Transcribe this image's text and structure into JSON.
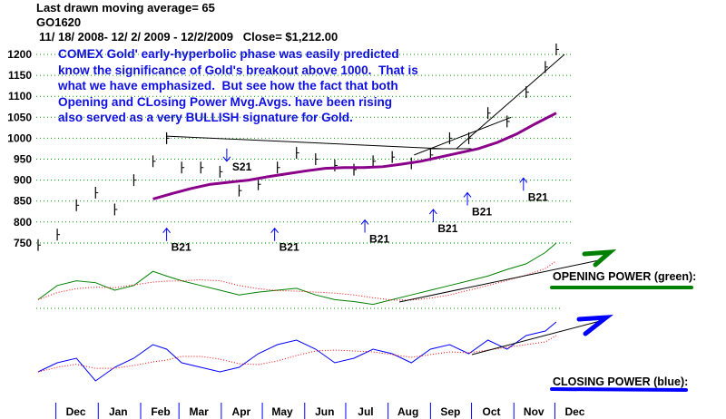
{
  "header": {
    "ma_line": "Last drawn moving average= 65",
    "symbol": "GO1620",
    "range_line": "11/ 18/ 2008- 12/ 2/ 2009 - 12/2/2009   Close= $1,212.00"
  },
  "annotation": {
    "lines": [
      "COMEX Gold' early-hyperbolic phase was easily predicted",
      "know the significance of Gold's breakout above 1000.  That is",
      "what we have emphasized.  But see how the fact that both",
      "Opening and CLosing Power Mvg.Avgs. have been rising",
      "also served as a very BULLISH signature for Gold."
    ]
  },
  "panels": {
    "opening_power_label": "OPENING POWER (green):",
    "closing_power_label": "CLOSING POWER (blue):"
  },
  "colors": {
    "price": "#000000",
    "moving_average": "#8b008b",
    "opening_power": "#008000",
    "closing_power": "#0000ff",
    "indicator_ma": "#ff0000",
    "grid": "#00a000",
    "signal": "#0000ff",
    "annotation_text": "#1010e0"
  },
  "chart_data": {
    "type": "bar",
    "subtype": "ohlc-price-with-indicators",
    "yticks": [
      750,
      800,
      850,
      900,
      950,
      1000,
      1050,
      1100,
      1150,
      1200
    ],
    "ylim": [
      740,
      1220
    ],
    "grid": true,
    "months": [
      "Dec",
      "Jan",
      "Feb",
      "Mar",
      "Apr",
      "May",
      "Jun",
      "Jul",
      "Aug",
      "Sep",
      "Oct",
      "Nov",
      "Dec"
    ],
    "month_starts": [
      "2008-12-01",
      "2009-01-01",
      "2009-02-01",
      "2009-03-01",
      "2009-04-01",
      "2009-05-01",
      "2009-06-01",
      "2009-07-01",
      "2009-08-01",
      "2009-09-01",
      "2009-10-01",
      "2009-11-01",
      "2009-12-01"
    ],
    "xlim": [
      "2008-11-18",
      "2009-12-08"
    ],
    "price": {
      "dates": [
        "2008-11-18",
        "2008-12-02",
        "2008-12-16",
        "2008-12-30",
        "2009-01-13",
        "2009-01-27",
        "2009-02-10",
        "2009-02-20",
        "2009-03-03",
        "2009-03-17",
        "2009-03-31",
        "2009-04-14",
        "2009-04-28",
        "2009-05-12",
        "2009-05-26",
        "2009-06-09",
        "2009-06-23",
        "2009-07-07",
        "2009-07-21",
        "2009-08-04",
        "2009-08-18",
        "2009-09-01",
        "2009-09-15",
        "2009-09-29",
        "2009-10-13",
        "2009-10-27",
        "2009-11-10",
        "2009-11-24",
        "2009-12-02"
      ],
      "close": [
        745,
        770,
        840,
        870,
        830,
        900,
        945,
        1000,
        930,
        930,
        920,
        875,
        890,
        930,
        965,
        950,
        935,
        925,
        945,
        955,
        940,
        960,
        1000,
        1000,
        1060,
        1040,
        1110,
        1170,
        1212
      ]
    },
    "moving_average_65": {
      "dates": [
        "2009-02-10",
        "2009-02-24",
        "2009-03-10",
        "2009-03-24",
        "2009-04-07",
        "2009-04-21",
        "2009-05-05",
        "2009-05-19",
        "2009-06-02",
        "2009-06-16",
        "2009-06-30",
        "2009-07-14",
        "2009-07-28",
        "2009-08-11",
        "2009-08-25",
        "2009-09-08",
        "2009-09-22",
        "2009-10-06",
        "2009-10-20",
        "2009-11-03",
        "2009-11-17",
        "2009-12-02"
      ],
      "values": [
        855,
        868,
        880,
        890,
        895,
        900,
        908,
        915,
        922,
        928,
        930,
        930,
        932,
        938,
        945,
        955,
        965,
        975,
        990,
        1010,
        1035,
        1060
      ]
    },
    "trendlines": [
      {
        "from": [
          "2009-02-20",
          1005
        ],
        "to": [
          "2009-09-10",
          975
        ]
      },
      {
        "from": [
          "2009-08-20",
          960
        ],
        "to": [
          "2009-10-30",
          1050
        ]
      },
      {
        "from": [
          "2009-09-20",
          975
        ],
        "to": [
          "2009-12-08",
          1200
        ]
      },
      {
        "from": [
          "2009-09-01",
          975
        ],
        "to": [
          "2009-10-01",
          975
        ]
      }
    ],
    "signals": [
      {
        "label": "B21",
        "type": "buy",
        "date": "2009-02-20",
        "price": 785
      },
      {
        "label": "S21",
        "type": "sell",
        "date": "2009-04-05",
        "price": 945
      },
      {
        "label": "B21",
        "type": "buy",
        "date": "2009-05-10",
        "price": 785
      },
      {
        "label": "B21",
        "type": "buy",
        "date": "2009-07-15",
        "price": 805
      },
      {
        "label": "B21",
        "type": "buy",
        "date": "2009-09-03",
        "price": 830
      },
      {
        "label": "B21",
        "type": "buy",
        "date": "2009-09-28",
        "price": 870
      },
      {
        "label": "B21",
        "type": "buy",
        "date": "2009-11-08",
        "price": 905
      }
    ],
    "opening_power": {
      "values": [
        40,
        55,
        60,
        58,
        50,
        55,
        70,
        65,
        60,
        55,
        50,
        45,
        48,
        50,
        52,
        45,
        40,
        38,
        35,
        40,
        45,
        50,
        55,
        60,
        65,
        72,
        78,
        90,
        100
      ]
    },
    "closing_power": {
      "values": [
        30,
        40,
        45,
        20,
        35,
        45,
        60,
        55,
        40,
        35,
        30,
        35,
        50,
        60,
        65,
        55,
        40,
        45,
        55,
        50,
        40,
        55,
        60,
        50,
        65,
        55,
        70,
        75,
        85
      ]
    }
  }
}
